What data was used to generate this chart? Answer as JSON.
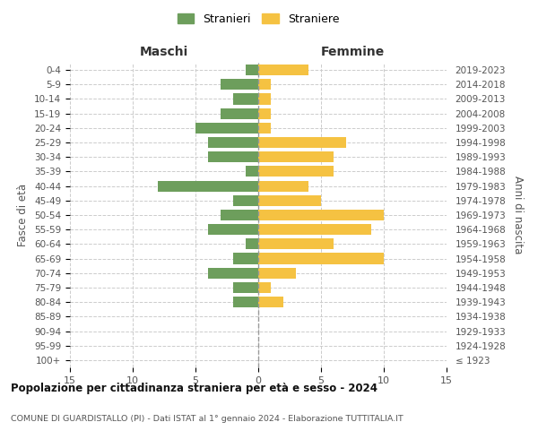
{
  "age_groups": [
    "100+",
    "95-99",
    "90-94",
    "85-89",
    "80-84",
    "75-79",
    "70-74",
    "65-69",
    "60-64",
    "55-59",
    "50-54",
    "45-49",
    "40-44",
    "35-39",
    "30-34",
    "25-29",
    "20-24",
    "15-19",
    "10-14",
    "5-9",
    "0-4"
  ],
  "birth_years": [
    "≤ 1923",
    "1924-1928",
    "1929-1933",
    "1934-1938",
    "1939-1943",
    "1944-1948",
    "1949-1953",
    "1954-1958",
    "1959-1963",
    "1964-1968",
    "1969-1973",
    "1974-1978",
    "1979-1983",
    "1984-1988",
    "1989-1993",
    "1994-1998",
    "1999-2003",
    "2004-2008",
    "2009-2013",
    "2014-2018",
    "2019-2023"
  ],
  "males": [
    0,
    0,
    0,
    0,
    2,
    2,
    4,
    2,
    1,
    4,
    3,
    2,
    8,
    1,
    4,
    4,
    5,
    3,
    2,
    3,
    1
  ],
  "females": [
    0,
    0,
    0,
    0,
    2,
    1,
    3,
    10,
    6,
    9,
    10,
    5,
    4,
    6,
    6,
    7,
    1,
    1,
    1,
    1,
    4
  ],
  "male_color": "#6d9e5c",
  "female_color": "#f5c242",
  "background_color": "#ffffff",
  "grid_color": "#cccccc",
  "title": "Popolazione per cittadinanza straniera per età e sesso - 2024",
  "subtitle": "COMUNE DI GUARDISTALLO (PI) - Dati ISTAT al 1° gennaio 2024 - Elaborazione TUTTITALIA.IT",
  "xlabel_left": "Maschi",
  "xlabel_right": "Femmine",
  "ylabel_left": "Fasce di età",
  "ylabel_right": "Anni di nascita",
  "legend_stranieri": "Stranieri",
  "legend_straniere": "Straniere",
  "xlim": 15
}
